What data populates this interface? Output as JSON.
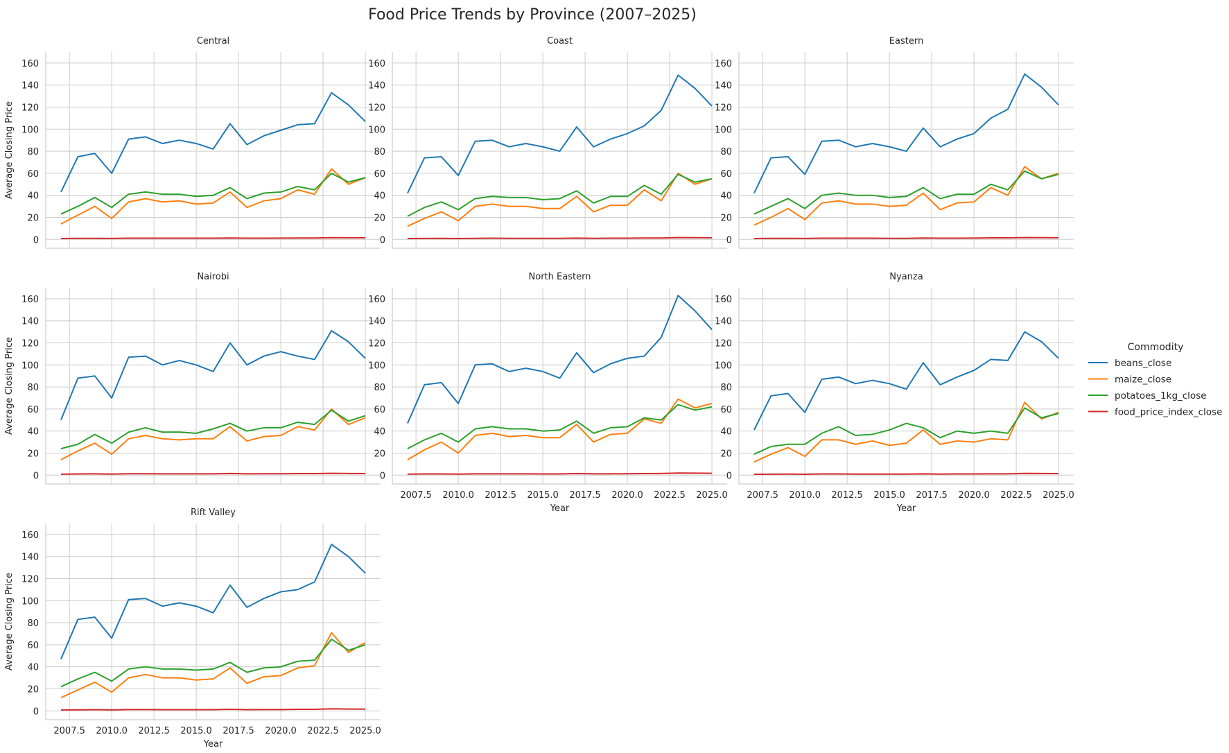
{
  "chart_data": {
    "type": "line",
    "title": "Food Price Trends by Province (2007–2025)",
    "xlabel": "Year",
    "ylabel": "Average Closing Price",
    "xlim": [
      2006.1,
      2025.9
    ],
    "ylim": [
      -8,
      170
    ],
    "x_ticks": [
      2007.5,
      2010.0,
      2012.5,
      2015.0,
      2017.5,
      2020.0,
      2022.5,
      2025.0
    ],
    "y_ticks": [
      0,
      20,
      40,
      60,
      80,
      100,
      120,
      140,
      160
    ],
    "grid": true,
    "legend_title": "Commodity",
    "legend_position": "right",
    "series_meta": [
      {
        "key": "beans_close",
        "name": "beans_close",
        "color": "#1f77b4"
      },
      {
        "key": "maize_close",
        "name": "maize_close",
        "color": "#ff7f0e"
      },
      {
        "key": "potatoes_1kg_close",
        "name": "potatoes_1kg_close",
        "color": "#2ca02c"
      },
      {
        "key": "food_price_index_close",
        "name": "food_price_index_close",
        "color": "#d62728"
      }
    ],
    "x": [
      2007,
      2008,
      2009,
      2010,
      2011,
      2012,
      2013,
      2014,
      2015,
      2016,
      2017,
      2018,
      2019,
      2020,
      2021,
      2022,
      2023,
      2024,
      2025
    ],
    "panels": [
      {
        "title": "Central",
        "series": {
          "beans_close": [
            43,
            75,
            78,
            60,
            91,
            93,
            87,
            90,
            87,
            82,
            105,
            86,
            94,
            99,
            104,
            105,
            133,
            122,
            107
          ],
          "maize_close": [
            14,
            22,
            30,
            19,
            34,
            37,
            34,
            35,
            32,
            33,
            43,
            29,
            35,
            37,
            45,
            41,
            64,
            50,
            56
          ],
          "potatoes_1kg_close": [
            23,
            30,
            38,
            29,
            41,
            43,
            41,
            41,
            39,
            40,
            47,
            37,
            42,
            43,
            48,
            45,
            60,
            52,
            56
          ],
          "food_price_index_close": [
            0.8,
            1.0,
            1.0,
            0.9,
            1.1,
            1.1,
            1.1,
            1.1,
            1.1,
            1.1,
            1.3,
            1.1,
            1.1,
            1.2,
            1.3,
            1.3,
            1.6,
            1.5,
            1.4
          ]
        }
      },
      {
        "title": "Coast",
        "series": {
          "beans_close": [
            42,
            74,
            75,
            58,
            89,
            90,
            84,
            87,
            84,
            80,
            102,
            84,
            91,
            96,
            103,
            117,
            149,
            137,
            121
          ],
          "maize_close": [
            12,
            19,
            25,
            17,
            30,
            32,
            30,
            30,
            28,
            28,
            39,
            25,
            31,
            31,
            45,
            35,
            60,
            50,
            55
          ],
          "potatoes_1kg_close": [
            21,
            29,
            34,
            27,
            37,
            39,
            38,
            38,
            36,
            37,
            44,
            33,
            39,
            39,
            49,
            41,
            59,
            52,
            55
          ],
          "food_price_index_close": [
            0.8,
            0.9,
            1.0,
            0.8,
            1.0,
            1.1,
            1.0,
            1.0,
            1.0,
            1.0,
            1.2,
            1.0,
            1.1,
            1.1,
            1.3,
            1.3,
            1.7,
            1.6,
            1.5
          ]
        }
      },
      {
        "title": "Eastern",
        "series": {
          "beans_close": [
            42,
            74,
            75,
            59,
            89,
            90,
            84,
            87,
            84,
            80,
            101,
            84,
            91,
            96,
            110,
            118,
            150,
            138,
            122
          ],
          "maize_close": [
            13,
            20,
            28,
            18,
            33,
            35,
            32,
            32,
            30,
            31,
            42,
            27,
            33,
            34,
            47,
            40,
            66,
            55,
            60
          ],
          "potatoes_1kg_close": [
            23,
            30,
            37,
            28,
            40,
            42,
            40,
            40,
            38,
            39,
            47,
            37,
            41,
            41,
            50,
            45,
            62,
            55,
            59
          ],
          "food_price_index_close": [
            0.8,
            1.0,
            1.0,
            0.9,
            1.1,
            1.1,
            1.1,
            1.1,
            1.0,
            1.0,
            1.3,
            1.1,
            1.1,
            1.2,
            1.4,
            1.4,
            1.7,
            1.6,
            1.5
          ]
        }
      },
      {
        "title": "Nairobi",
        "series": {
          "beans_close": [
            50,
            88,
            90,
            70,
            107,
            108,
            100,
            104,
            100,
            94,
            120,
            100,
            108,
            112,
            108,
            105,
            131,
            121,
            106
          ],
          "maize_close": [
            14,
            22,
            29,
            19,
            33,
            36,
            33,
            32,
            33,
            33,
            44,
            31,
            35,
            36,
            44,
            41,
            60,
            46,
            52
          ],
          "potatoes_1kg_close": [
            24,
            28,
            37,
            29,
            39,
            43,
            39,
            39,
            38,
            42,
            47,
            40,
            43,
            43,
            48,
            46,
            59,
            49,
            54
          ],
          "food_price_index_close": [
            0.9,
            1.1,
            1.2,
            1.0,
            1.3,
            1.3,
            1.2,
            1.2,
            1.2,
            1.2,
            1.5,
            1.2,
            1.3,
            1.3,
            1.4,
            1.4,
            1.7,
            1.5,
            1.4
          ]
        }
      },
      {
        "title": "North Eastern",
        "series": {
          "beans_close": [
            47,
            82,
            84,
            65,
            100,
            101,
            94,
            97,
            94,
            88,
            111,
            93,
            101,
            106,
            108,
            125,
            163,
            149,
            132
          ],
          "maize_close": [
            14,
            23,
            30,
            20,
            36,
            38,
            35,
            36,
            34,
            34,
            46,
            30,
            37,
            38,
            51,
            47,
            69,
            61,
            65
          ],
          "potatoes_1kg_close": [
            24,
            32,
            38,
            30,
            42,
            44,
            42,
            42,
            40,
            41,
            49,
            38,
            43,
            44,
            52,
            50,
            64,
            59,
            62
          ],
          "food_price_index_close": [
            0.9,
            1.1,
            1.1,
            1.0,
            1.2,
            1.2,
            1.2,
            1.2,
            1.1,
            1.1,
            1.4,
            1.2,
            1.2,
            1.3,
            1.4,
            1.5,
            1.9,
            1.8,
            1.7
          ]
        }
      },
      {
        "title": "Nyanza",
        "series": {
          "beans_close": [
            41,
            72,
            74,
            57,
            87,
            89,
            83,
            86,
            83,
            78,
            102,
            82,
            89,
            95,
            105,
            104,
            130,
            121,
            106
          ],
          "maize_close": [
            12,
            19,
            25,
            17,
            32,
            32,
            28,
            31,
            27,
            29,
            41,
            28,
            31,
            30,
            33,
            32,
            66,
            51,
            57
          ],
          "potatoes_1kg_close": [
            19,
            26,
            28,
            28,
            38,
            44,
            36,
            37,
            41,
            47,
            43,
            34,
            40,
            38,
            40,
            38,
            61,
            52,
            56
          ],
          "food_price_index_close": [
            0.8,
            0.9,
            1.0,
            0.8,
            1.1,
            1.1,
            1.0,
            1.0,
            1.0,
            1.0,
            1.2,
            1.0,
            1.1,
            1.1,
            1.2,
            1.2,
            1.6,
            1.5,
            1.4
          ]
        }
      },
      {
        "title": "Rift Valley",
        "series": {
          "beans_close": [
            47,
            83,
            85,
            66,
            101,
            102,
            95,
            98,
            95,
            89,
            114,
            94,
            102,
            108,
            110,
            117,
            151,
            140,
            125
          ],
          "maize_close": [
            12,
            19,
            26,
            17,
            30,
            33,
            30,
            30,
            28,
            29,
            39,
            25,
            31,
            32,
            39,
            41,
            71,
            53,
            62
          ],
          "potatoes_1kg_close": [
            22,
            29,
            35,
            27,
            38,
            40,
            38,
            38,
            37,
            38,
            44,
            35,
            39,
            40,
            45,
            46,
            65,
            55,
            60
          ],
          "food_price_index_close": [
            0.9,
            1.0,
            1.1,
            0.9,
            1.2,
            1.2,
            1.1,
            1.1,
            1.1,
            1.1,
            1.4,
            1.1,
            1.2,
            1.2,
            1.4,
            1.4,
            1.9,
            1.7,
            1.6
          ]
        }
      }
    ]
  }
}
